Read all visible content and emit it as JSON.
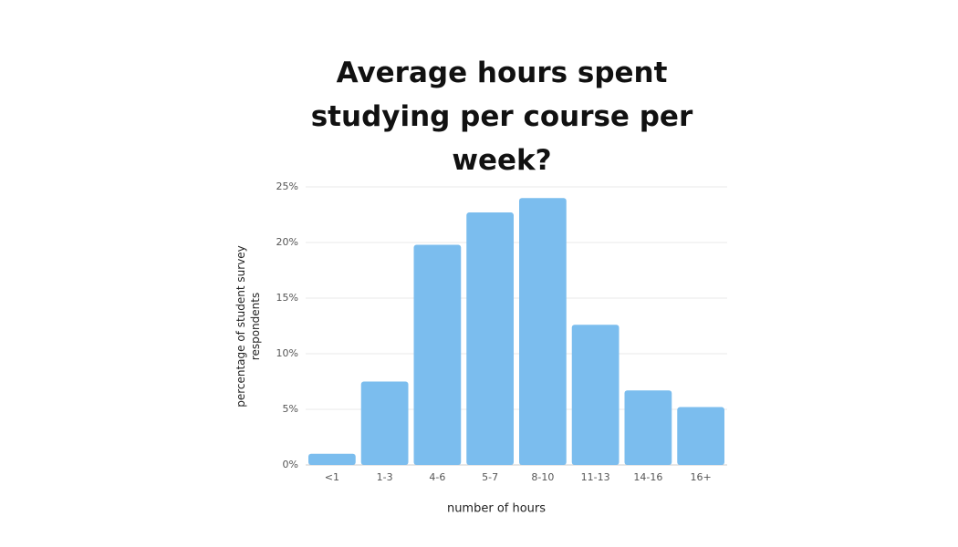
{
  "chart_data": {
    "type": "bar",
    "title": "Average hours spent studying per course per week?",
    "xlabel": "number of hours",
    "ylabel": "percentage of student survey respondents",
    "categories": [
      "<1",
      "1-3",
      "4-6",
      "5-7",
      "8-10",
      "11-13",
      "14-16",
      "16+"
    ],
    "values": [
      1.0,
      7.5,
      19.8,
      22.7,
      24.0,
      12.6,
      6.7,
      5.2
    ],
    "color": "#7bbdee",
    "ylim": [
      0,
      25
    ],
    "yticks": [
      {
        "value": 0,
        "label": "0%"
      },
      {
        "value": 5,
        "label": "5%"
      },
      {
        "value": 10,
        "label": "10%"
      },
      {
        "value": 15,
        "label": "15%"
      },
      {
        "value": 20,
        "label": "20%"
      },
      {
        "value": 25,
        "label": "25%"
      }
    ],
    "grid": true
  }
}
